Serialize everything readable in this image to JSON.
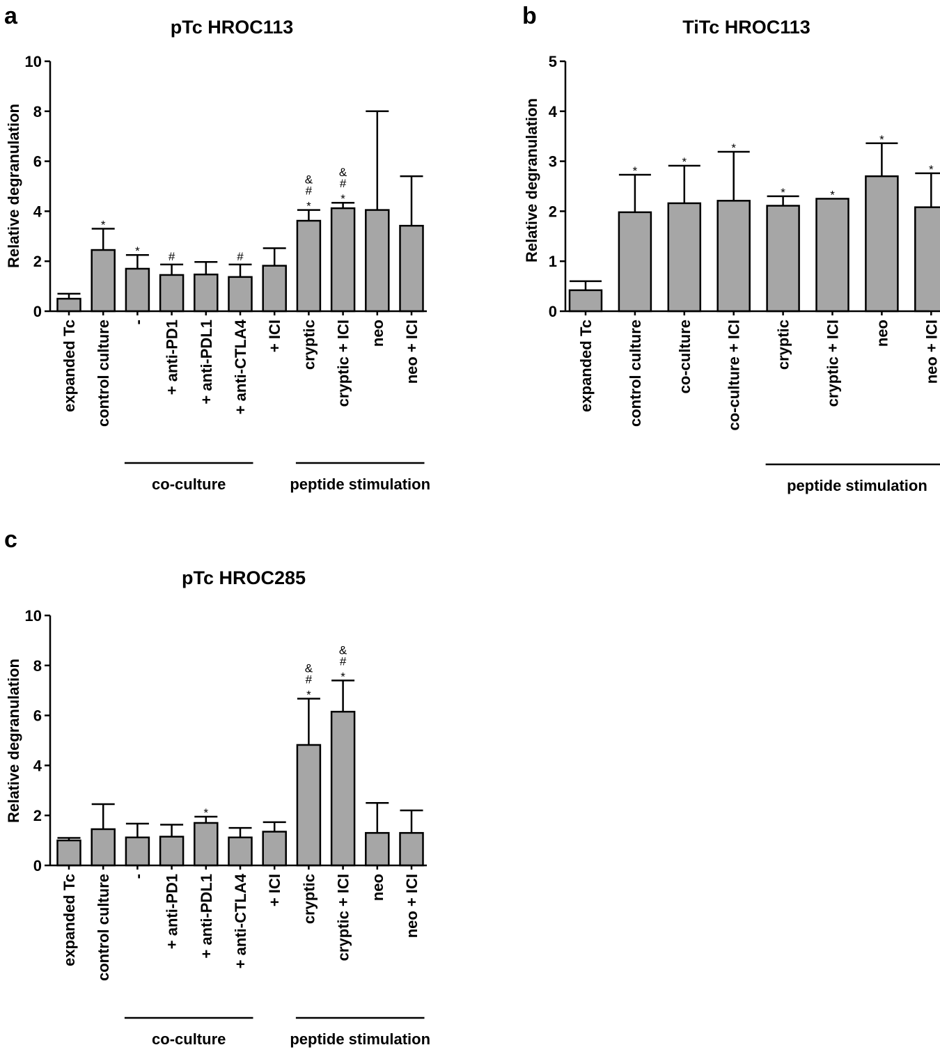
{
  "colors": {
    "bar_fill": "#a6a6a6",
    "stroke": "#000000"
  },
  "chart_data": [
    {
      "panel": "a",
      "type": "bar",
      "title": "pTc HROC113",
      "ylabel": "Relative degranulation",
      "ylim": [
        0,
        10
      ],
      "yticks": [
        0,
        2,
        4,
        6,
        8,
        10
      ],
      "categories": [
        "expanded Tc",
        "control culture",
        "-",
        "+ anti-PD1",
        "+ anti-PDL1",
        "+ anti-CTLA4",
        "+ ICI",
        "cryptic",
        "cryptic + ICI",
        "neo",
        "neo + ICI"
      ],
      "values": [
        0.5,
        2.45,
        1.7,
        1.45,
        1.47,
        1.37,
        1.82,
        3.62,
        4.12,
        4.05,
        3.42
      ],
      "errors": [
        0.2,
        0.85,
        0.55,
        0.42,
        0.5,
        0.5,
        0.7,
        0.43,
        0.22,
        3.95,
        1.98
      ],
      "annotations": [
        "",
        "*",
        "*",
        "#",
        "",
        "#",
        "",
        "&\n#\n*",
        "&\n#\n*",
        "",
        ""
      ],
      "groups": [
        {
          "label": "co-culture",
          "from": 2,
          "to": 5
        },
        {
          "label": "peptide stimulation",
          "from": 7,
          "to": 10
        }
      ]
    },
    {
      "panel": "b",
      "type": "bar",
      "title": "TiTc HROC113",
      "ylabel": "Relative degranulation",
      "ylim": [
        0,
        5
      ],
      "yticks": [
        0,
        1,
        2,
        3,
        4,
        5
      ],
      "categories": [
        "expanded Tc",
        "control culture",
        "co-culture",
        "co-culture + ICI",
        "cryptic",
        "cryptic + ICI",
        "neo",
        "neo + ICI"
      ],
      "values": [
        0.42,
        1.98,
        2.16,
        2.21,
        2.11,
        2.25,
        2.7,
        2.08
      ],
      "errors": [
        0.18,
        0.75,
        0.75,
        0.98,
        0.19,
        0.0,
        0.66,
        0.68
      ],
      "annotations": [
        "",
        "*",
        "*",
        "*",
        "*",
        "*",
        "*",
        "*"
      ],
      "groups": [
        {
          "label": "peptide stimulation",
          "from": 4,
          "to": 7
        }
      ]
    },
    {
      "panel": "c",
      "type": "bar",
      "title": "pTc HROC285",
      "ylabel": "Relative degranulation",
      "ylim": [
        0,
        10
      ],
      "yticks": [
        0,
        2,
        4,
        6,
        8,
        10
      ],
      "categories": [
        "expanded Tc",
        "control culture",
        "-",
        "+ anti-PD1",
        "+ anti-PDL1",
        "+ anti-CTLA4",
        "+ ICI",
        "cryptic",
        "cryptic + ICI",
        "neo",
        "neo + ICI"
      ],
      "values": [
        1.0,
        1.45,
        1.12,
        1.15,
        1.7,
        1.12,
        1.35,
        4.82,
        6.15,
        1.3,
        1.3
      ],
      "errors": [
        0.1,
        1.0,
        0.55,
        0.48,
        0.25,
        0.38,
        0.38,
        1.85,
        1.25,
        1.2,
        0.9
      ],
      "annotations": [
        "",
        "",
        "",
        "",
        "*",
        "",
        "",
        "&\n#\n*",
        "&\n#\n*",
        "",
        ""
      ],
      "groups": [
        {
          "label": "co-culture",
          "from": 2,
          "to": 5
        },
        {
          "label": "peptide stimulation",
          "from": 7,
          "to": 10
        }
      ]
    }
  ]
}
